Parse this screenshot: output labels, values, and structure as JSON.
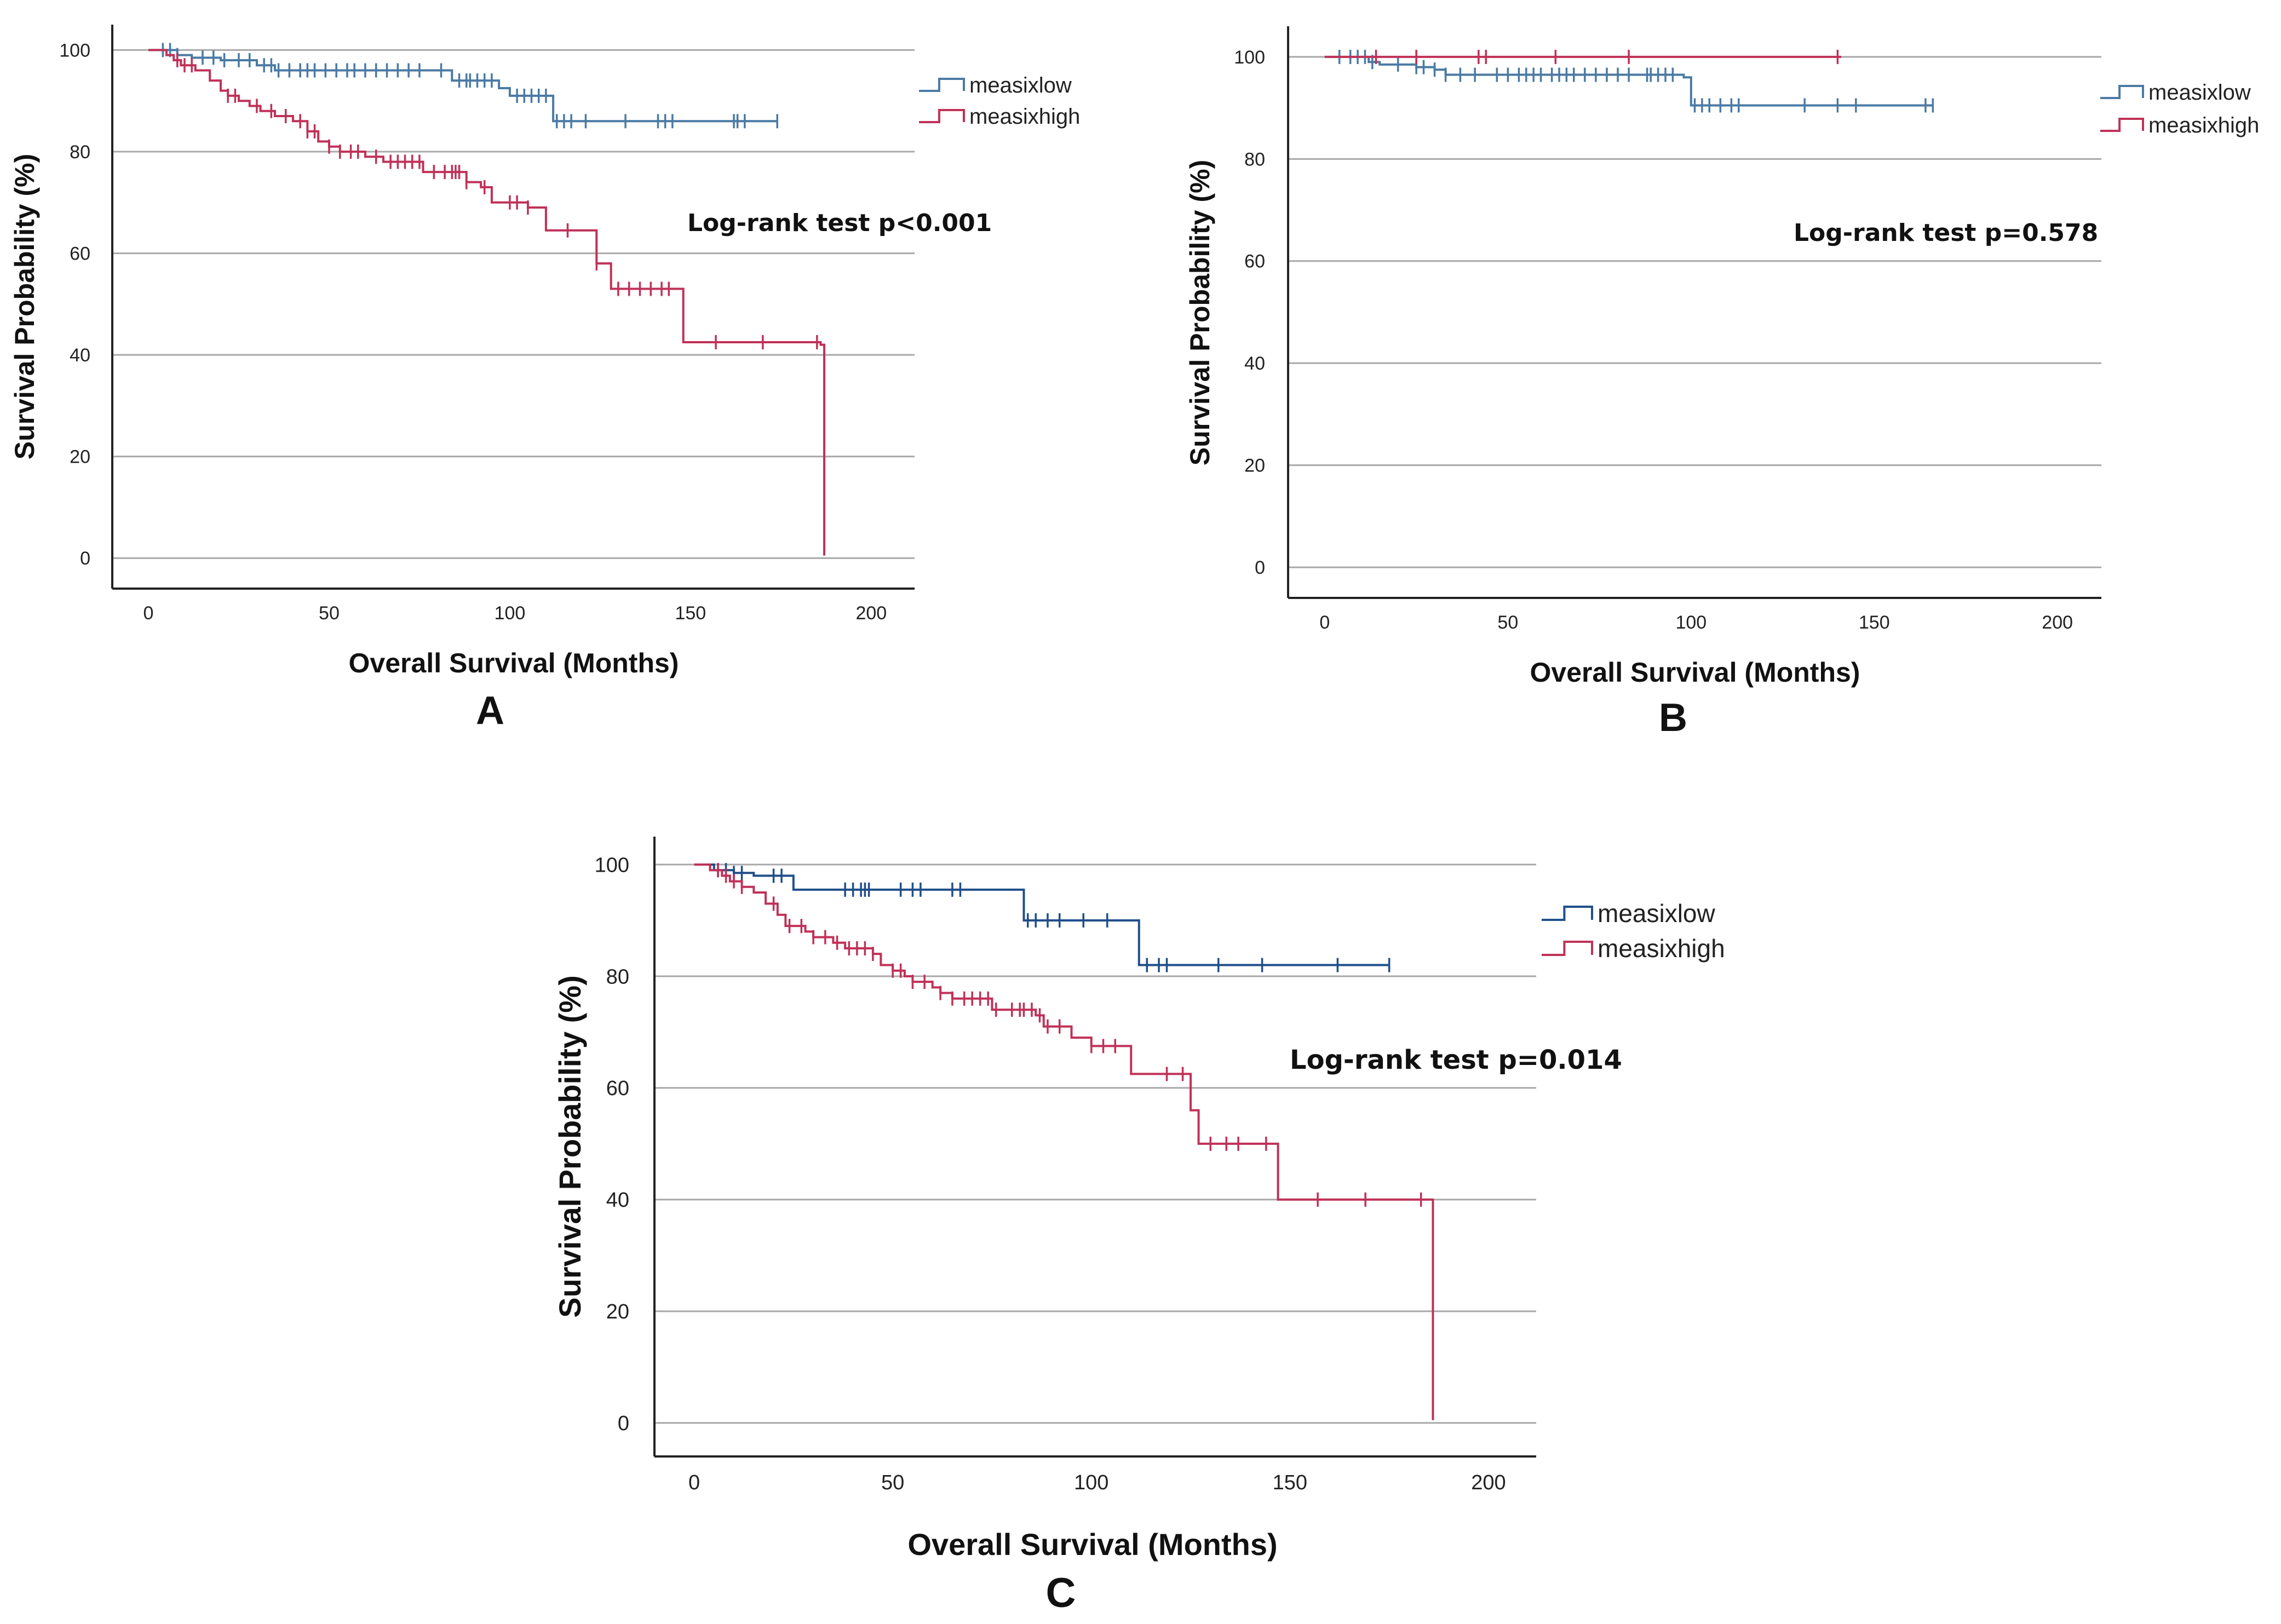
{
  "colors": {
    "low": "#4a7aa4",
    "high": "#c03158",
    "low_c": "#1f4f8a"
  },
  "chart_data": [
    {
      "panel": "A",
      "type": "line",
      "subtype": "kaplan-meier",
      "xlabel": "Overall Survival (Months)",
      "ylabel": "Survival Probability (%)",
      "xlim": [
        -10,
        212
      ],
      "ylim": [
        -6,
        105
      ],
      "xticks": [
        0,
        50,
        100,
        150,
        200
      ],
      "yticks": [
        0,
        20,
        40,
        60,
        80,
        100
      ],
      "annotation": "Log-rank test p<0.001",
      "legend": [
        "measixlow",
        "measixhigh"
      ],
      "series": [
        {
          "name": "measixlow",
          "color_key": "low",
          "end": 174,
          "steps": [
            [
              0,
              100
            ],
            [
              8,
              99
            ],
            [
              12,
              98.5
            ],
            [
              20,
              98
            ],
            [
              30,
              97
            ],
            [
              35,
              96
            ],
            [
              80,
              96
            ],
            [
              84,
              94
            ],
            [
              97,
              92.5
            ],
            [
              100,
              91
            ],
            [
              112,
              86
            ],
            [
              174,
              86
            ]
          ],
          "censored": [
            4,
            6,
            8,
            15,
            18,
            21,
            25,
            28,
            32,
            34,
            36,
            39,
            42,
            44,
            46,
            49,
            52,
            55,
            57,
            60,
            63,
            66,
            69,
            72,
            75,
            81,
            86,
            88,
            89,
            91,
            93,
            95,
            102,
            104,
            106,
            108,
            110,
            113,
            115,
            117,
            121,
            132,
            141,
            143,
            145,
            162,
            163,
            165,
            174
          ]
        },
        {
          "name": "measixhigh",
          "color_key": "high",
          "end": 187,
          "steps": [
            [
              0,
              100
            ],
            [
              5,
              99
            ],
            [
              7,
              98
            ],
            [
              9,
              97
            ],
            [
              13,
              96
            ],
            [
              17,
              94
            ],
            [
              20,
              92
            ],
            [
              22,
              91
            ],
            [
              25,
              90
            ],
            [
              28,
              89
            ],
            [
              31,
              88
            ],
            [
              35,
              87
            ],
            [
              40,
              86
            ],
            [
              44,
              84
            ],
            [
              47,
              82
            ],
            [
              50,
              81
            ],
            [
              53,
              80
            ],
            [
              60,
              79
            ],
            [
              65,
              78
            ],
            [
              76,
              76
            ],
            [
              88,
              74
            ],
            [
              92,
              73
            ],
            [
              95,
              70
            ],
            [
              105,
              69
            ],
            [
              110,
              64.5
            ],
            [
              124,
              58
            ],
            [
              128,
              53
            ],
            [
              148,
              42.5
            ],
            [
              186,
              42
            ],
            [
              187,
              0.5
            ]
          ],
          "censored": [
            8,
            10,
            12,
            22,
            24,
            30,
            34,
            38,
            42,
            44,
            46,
            50,
            53,
            56,
            58,
            63,
            67,
            69,
            71,
            73,
            75,
            79,
            82,
            84,
            85,
            86,
            88,
            93,
            100,
            102,
            105,
            116,
            124,
            130,
            133,
            136,
            139,
            142,
            144,
            157,
            170,
            185
          ]
        }
      ]
    },
    {
      "panel": "B",
      "type": "line",
      "subtype": "kaplan-meier",
      "xlabel": "Overall Survival (Months)",
      "ylabel": "Survival Probability (%)",
      "xlim": [
        -10,
        212
      ],
      "ylim": [
        -6,
        106
      ],
      "xticks": [
        0,
        50,
        100,
        150,
        200
      ],
      "yticks": [
        0,
        20,
        40,
        60,
        80,
        100
      ],
      "annotation": "Log-rank test p=0.578",
      "legend": [
        "measixlow",
        "measixhigh"
      ],
      "series": [
        {
          "name": "measixlow",
          "color_key": "low",
          "end": 166,
          "steps": [
            [
              0,
              100
            ],
            [
              12,
              99
            ],
            [
              15,
              98.5
            ],
            [
              25,
              98
            ],
            [
              30,
              97.5
            ],
            [
              33,
              96.5
            ],
            [
              98,
              96
            ],
            [
              100,
              90.5
            ],
            [
              166,
              90.5
            ]
          ],
          "censored": [
            4,
            7,
            9,
            11,
            13,
            20,
            25,
            27,
            30,
            33,
            37,
            41,
            47,
            50,
            53,
            55,
            57,
            59,
            62,
            64,
            66,
            68,
            71,
            74,
            77,
            80,
            83,
            88,
            89,
            91,
            93,
            95,
            101,
            103,
            105,
            108,
            111,
            113,
            131,
            140,
            145,
            164,
            166
          ]
        },
        {
          "name": "measixhigh",
          "color_key": "high",
          "end": 141,
          "steps": [
            [
              0,
              100
            ],
            [
              141,
              100
            ]
          ],
          "censored": [
            14,
            25,
            42,
            44,
            63,
            83,
            140
          ]
        }
      ]
    },
    {
      "panel": "C",
      "type": "line",
      "subtype": "kaplan-meier",
      "xlabel": "Overall Survival (Months)",
      "ylabel": "Survival Probability (%)",
      "xlim": [
        -10,
        212
      ],
      "ylim": [
        -6,
        105
      ],
      "xticks": [
        0,
        50,
        100,
        150,
        200
      ],
      "yticks": [
        0,
        20,
        40,
        60,
        80,
        100
      ],
      "annotation": "Log-rank test p=0.014",
      "legend": [
        "measixlow",
        "measixhigh"
      ],
      "series": [
        {
          "name": "measixlow",
          "color_key": "low_c",
          "end": 175,
          "steps": [
            [
              0,
              100
            ],
            [
              5,
              99
            ],
            [
              10,
              98.5
            ],
            [
              15,
              98
            ],
            [
              25,
              95.5
            ],
            [
              82,
              95.5
            ],
            [
              83,
              90
            ],
            [
              111,
              90
            ],
            [
              112,
              82
            ],
            [
              175,
              82
            ]
          ],
          "censored": [
            6,
            8,
            10,
            12,
            20,
            22,
            38,
            40,
            42,
            43,
            44,
            52,
            55,
            57,
            65,
            67,
            84,
            86,
            89,
            92,
            98,
            104,
            114,
            117,
            119,
            132,
            143,
            162,
            175
          ]
        },
        {
          "name": "measixhigh",
          "color_key": "high",
          "end": 186,
          "steps": [
            [
              0,
              100
            ],
            [
              4,
              99
            ],
            [
              7,
              98
            ],
            [
              9,
              97
            ],
            [
              12,
              96
            ],
            [
              15,
              95
            ],
            [
              18,
              93
            ],
            [
              21,
              91
            ],
            [
              23,
              89
            ],
            [
              28,
              88
            ],
            [
              30,
              87
            ],
            [
              35,
              86
            ],
            [
              38,
              85
            ],
            [
              45,
              84
            ],
            [
              47,
              82
            ],
            [
              50,
              81
            ],
            [
              53,
              80
            ],
            [
              55,
              79
            ],
            [
              60,
              78
            ],
            [
              62,
              77
            ],
            [
              65,
              76
            ],
            [
              75,
              74
            ],
            [
              86,
              73
            ],
            [
              88,
              71
            ],
            [
              95,
              69
            ],
            [
              100,
              67.5
            ],
            [
              110,
              62.5
            ],
            [
              125,
              56
            ],
            [
              127,
              50
            ],
            [
              147,
              40
            ],
            [
              184,
              40
            ],
            [
              186,
              0.5
            ]
          ],
          "censored": [
            6,
            8,
            10,
            12,
            20,
            24,
            27,
            30,
            33,
            36,
            39,
            41,
            43,
            45,
            50,
            52,
            55,
            58,
            62,
            65,
            68,
            70,
            72,
            74,
            76,
            80,
            82,
            83,
            85,
            87,
            89,
            92,
            100,
            103,
            106,
            119,
            123,
            130,
            134,
            137,
            144,
            157,
            169,
            183
          ]
        }
      ]
    }
  ]
}
